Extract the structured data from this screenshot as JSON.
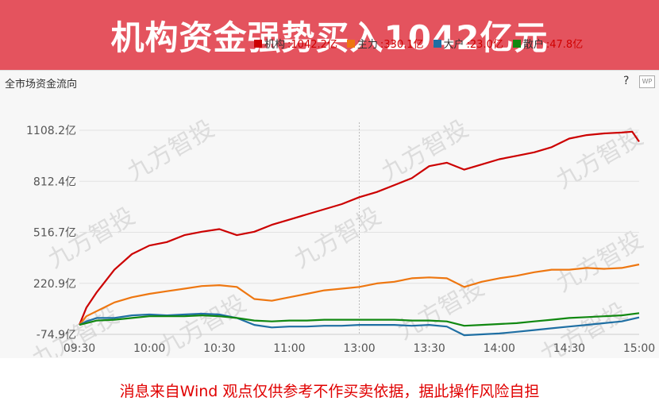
{
  "banner": {
    "title": "机构资金强势买入1042亿元"
  },
  "panel": {
    "title": "全市场资金流向",
    "help_label": "?",
    "wp_label": "WP"
  },
  "watermark": "九方智投",
  "legend": [
    {
      "name": "机构",
      "value": "1042.2亿",
      "color": "#cc0000"
    },
    {
      "name": "主力",
      "value": "330.1亿",
      "color": "#ee7711"
    },
    {
      "name": "大户",
      "value": "23.0亿",
      "color": "#1f6fa3"
    },
    {
      "name": "散户",
      "value": "47.8亿",
      "color": "#118811"
    }
  ],
  "disclaimer": "消息来自Wind 观点仅供参考不作买卖依据，据此操作风险自担",
  "chart_data": {
    "type": "line",
    "ylim": [
      -74.9,
      1108.2
    ],
    "y_ticks": [
      "1108.2亿",
      "812.4亿",
      "516.7亿",
      "220.9亿",
      "-74.9亿"
    ],
    "x_ticks": [
      "09:30",
      "10:00",
      "10:30",
      "11:00",
      "13:00",
      "13:30",
      "14:00",
      "14:30",
      "15:00"
    ],
    "x_range": [
      0,
      8
    ],
    "series": [
      {
        "name": "机构",
        "color": "#cc0000",
        "x": [
          0,
          0.1,
          0.25,
          0.5,
          0.75,
          1.0,
          1.25,
          1.5,
          1.75,
          2.0,
          2.25,
          2.5,
          2.75,
          3.0,
          3.25,
          3.5,
          3.75,
          4.0,
          4.25,
          4.5,
          4.75,
          5.0,
          5.25,
          5.5,
          5.75,
          6.0,
          6.25,
          6.5,
          6.75,
          7.0,
          7.25,
          7.5,
          7.75,
          7.9,
          8.0
        ],
        "values": [
          -20,
          80,
          170,
          300,
          390,
          440,
          460,
          500,
          520,
          535,
          500,
          520,
          560,
          590,
          620,
          650,
          680,
          720,
          750,
          790,
          830,
          900,
          920,
          880,
          910,
          940,
          960,
          980,
          1010,
          1060,
          1080,
          1090,
          1095,
          1100,
          1042
        ]
      },
      {
        "name": "主力",
        "color": "#ee7711",
        "x": [
          0,
          0.1,
          0.25,
          0.5,
          0.75,
          1.0,
          1.25,
          1.5,
          1.75,
          2.0,
          2.25,
          2.5,
          2.75,
          3.0,
          3.25,
          3.5,
          3.75,
          4.0,
          4.25,
          4.5,
          4.75,
          5.0,
          5.25,
          5.5,
          5.75,
          6.0,
          6.25,
          6.5,
          6.75,
          7.0,
          7.25,
          7.5,
          7.75,
          8.0
        ],
        "values": [
          -20,
          30,
          60,
          110,
          140,
          160,
          175,
          190,
          205,
          210,
          200,
          130,
          120,
          140,
          160,
          180,
          190,
          200,
          220,
          230,
          250,
          255,
          250,
          200,
          230,
          250,
          265,
          285,
          300,
          300,
          310,
          305,
          310,
          330
        ]
      },
      {
        "name": "大户",
        "color": "#1f6fa3",
        "x": [
          0,
          0.1,
          0.25,
          0.5,
          0.75,
          1.0,
          1.25,
          1.5,
          1.75,
          2.0,
          2.25,
          2.5,
          2.75,
          3.0,
          3.25,
          3.5,
          3.75,
          4.0,
          4.25,
          4.5,
          4.75,
          5.0,
          5.25,
          5.5,
          5.75,
          6.0,
          6.25,
          6.5,
          6.75,
          7.0,
          7.25,
          7.5,
          7.75,
          8.0
        ],
        "values": [
          -20,
          0,
          20,
          20,
          35,
          40,
          35,
          40,
          45,
          40,
          20,
          -20,
          -35,
          -30,
          -30,
          -25,
          -25,
          -20,
          -20,
          -20,
          -25,
          -20,
          -30,
          -80,
          -75,
          -70,
          -60,
          -50,
          -40,
          -30,
          -20,
          -10,
          0,
          23
        ]
      },
      {
        "name": "散户",
        "color": "#118811",
        "x": [
          0,
          0.1,
          0.25,
          0.5,
          0.75,
          1.0,
          1.25,
          1.5,
          1.75,
          2.0,
          2.25,
          2.5,
          2.75,
          3.0,
          3.25,
          3.5,
          3.75,
          4.0,
          4.25,
          4.5,
          4.75,
          5.0,
          5.25,
          5.5,
          5.75,
          6.0,
          6.25,
          6.5,
          6.75,
          7.0,
          7.25,
          7.5,
          7.75,
          8.0
        ],
        "values": [
          -20,
          -10,
          5,
          10,
          20,
          30,
          30,
          30,
          35,
          30,
          20,
          5,
          0,
          5,
          5,
          10,
          10,
          10,
          10,
          10,
          5,
          5,
          0,
          -25,
          -20,
          -15,
          -10,
          0,
          10,
          20,
          25,
          30,
          35,
          47.8
        ]
      }
    ]
  }
}
